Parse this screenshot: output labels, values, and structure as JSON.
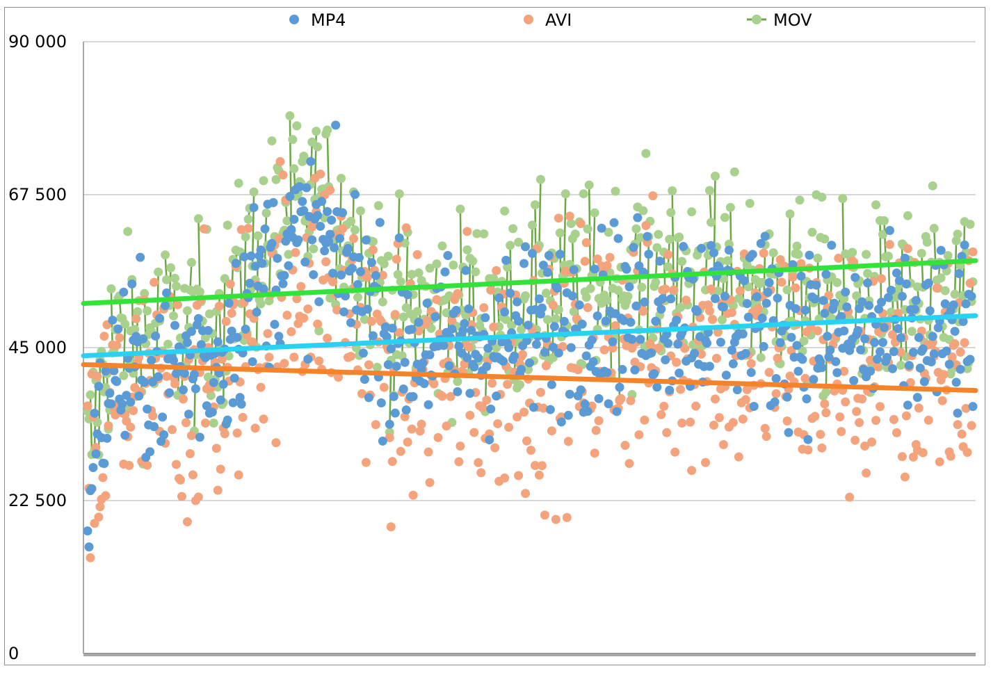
{
  "chart_data": {
    "type": "scatter",
    "title": "",
    "xlabel": "",
    "ylabel": "",
    "ylim": [
      0,
      90000
    ],
    "y_ticks": [
      0,
      22500,
      45000,
      67500,
      90000
    ],
    "y_tick_labels": [
      "0",
      "22 500",
      "45 000",
      "67 500",
      "90 000"
    ],
    "x_count": 640,
    "grid": "horizontal",
    "legend_position": "top",
    "series": [
      {
        "name": "MP4",
        "color": "#5b9bd5",
        "marker": "dot",
        "trend": {
          "start": 43800,
          "end": 49700,
          "color": "#29d2f0"
        }
      },
      {
        "name": "AVI",
        "color": "#f4a47c",
        "marker": "dot",
        "trend": {
          "start": 42500,
          "end": 38700,
          "color": "#f5832a"
        }
      },
      {
        "name": "MOV",
        "color": "#a9d18e",
        "marker": "dot-line",
        "line_color": "#6aa843",
        "trend": {
          "start": 51500,
          "end": 57800,
          "color": "#33e33a"
        }
      }
    ]
  }
}
